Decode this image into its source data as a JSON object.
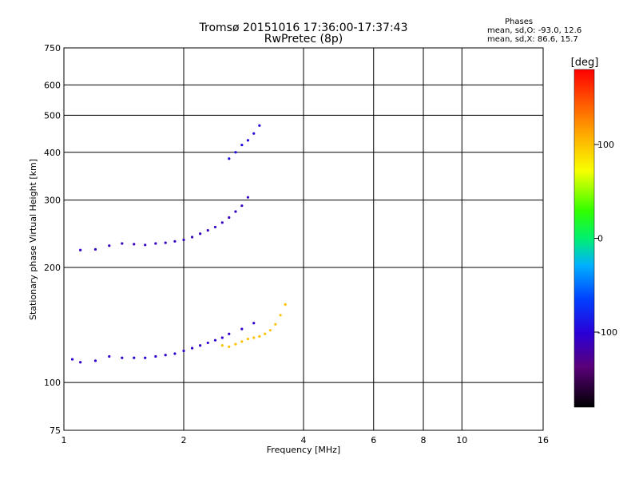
{
  "title": "Tromsø 20151016 17:36:00-17:37:43",
  "subtitle": "RwPretec (8p)",
  "stats": {
    "heading": "Phases",
    "line_o": "mean, sd,O: -93.0, 12.6",
    "line_x": "mean, sd,X:  86.6, 15.7"
  },
  "colorbar": {
    "label": "[deg]",
    "ticks": [
      "100",
      "0",
      "-100"
    ],
    "tick_values": [
      100,
      0,
      -100
    ],
    "range": [
      -180,
      180
    ]
  },
  "chart_data": {
    "type": "scatter",
    "title": "Tromsø 20151016 17:36:00-17:37:43",
    "subtitle": "RwPretec (8p)",
    "xlabel": "Frequency [MHz]",
    "ylabel": "Stationary phase Virtual Height [km]",
    "x_scale": "log",
    "y_scale": "log",
    "xlim": [
      1,
      16
    ],
    "ylim": [
      75,
      750
    ],
    "x_ticks": [
      1,
      2,
      4,
      6,
      8,
      10,
      16
    ],
    "x_tick_labels": [
      "1",
      "2",
      "4",
      "6",
      "8",
      "10",
      "16"
    ],
    "y_ticks": [
      75,
      100,
      200,
      300,
      400,
      500,
      600,
      750
    ],
    "y_tick_labels": [
      "75",
      "100",
      "200",
      "300",
      "400",
      "500",
      "600",
      "750"
    ],
    "grid": true,
    "color_scale": "phase [deg], rainbow -180 to 180",
    "series": [
      {
        "trace": "lower-blue",
        "x": [
          1.05,
          1.1,
          1.2,
          1.3,
          1.4,
          1.5,
          1.6,
          1.7,
          1.8,
          1.9,
          2.0,
          2.1,
          2.2,
          2.3,
          2.4,
          2.5,
          2.6,
          2.8,
          3.0
        ],
        "y": [
          115,
          113,
          114,
          117,
          116,
          116,
          116,
          117,
          118,
          119,
          121,
          123,
          125,
          127,
          129,
          131,
          134,
          138,
          143
        ],
        "phase": -105
      },
      {
        "trace": "upper-blue",
        "x": [
          1.1,
          1.2,
          1.3,
          1.4,
          1.5,
          1.6,
          1.7,
          1.8,
          1.9,
          2.0,
          2.1,
          2.2,
          2.3,
          2.4,
          2.5,
          2.6,
          2.7,
          2.8,
          2.9
        ],
        "y": [
          222,
          223,
          228,
          231,
          230,
          229,
          231,
          232,
          234,
          236,
          240,
          245,
          250,
          255,
          262,
          270,
          280,
          290,
          305
        ],
        "phase": -110
      },
      {
        "trace": "yellow-x",
        "x": [
          2.5,
          2.6,
          2.7,
          2.8,
          2.9,
          3.0,
          3.1,
          3.2,
          3.3,
          3.4,
          3.5,
          3.6
        ],
        "y": [
          125,
          124,
          126,
          128,
          130,
          131,
          132,
          134,
          137,
          142,
          150,
          160
        ],
        "phase": 100
      },
      {
        "trace": "upper-x-blue",
        "x": [
          2.6,
          2.7,
          2.8,
          2.9,
          3.0,
          3.1
        ],
        "y": [
          385,
          400,
          418,
          430,
          448,
          470
        ],
        "phase": -95
      }
    ]
  }
}
